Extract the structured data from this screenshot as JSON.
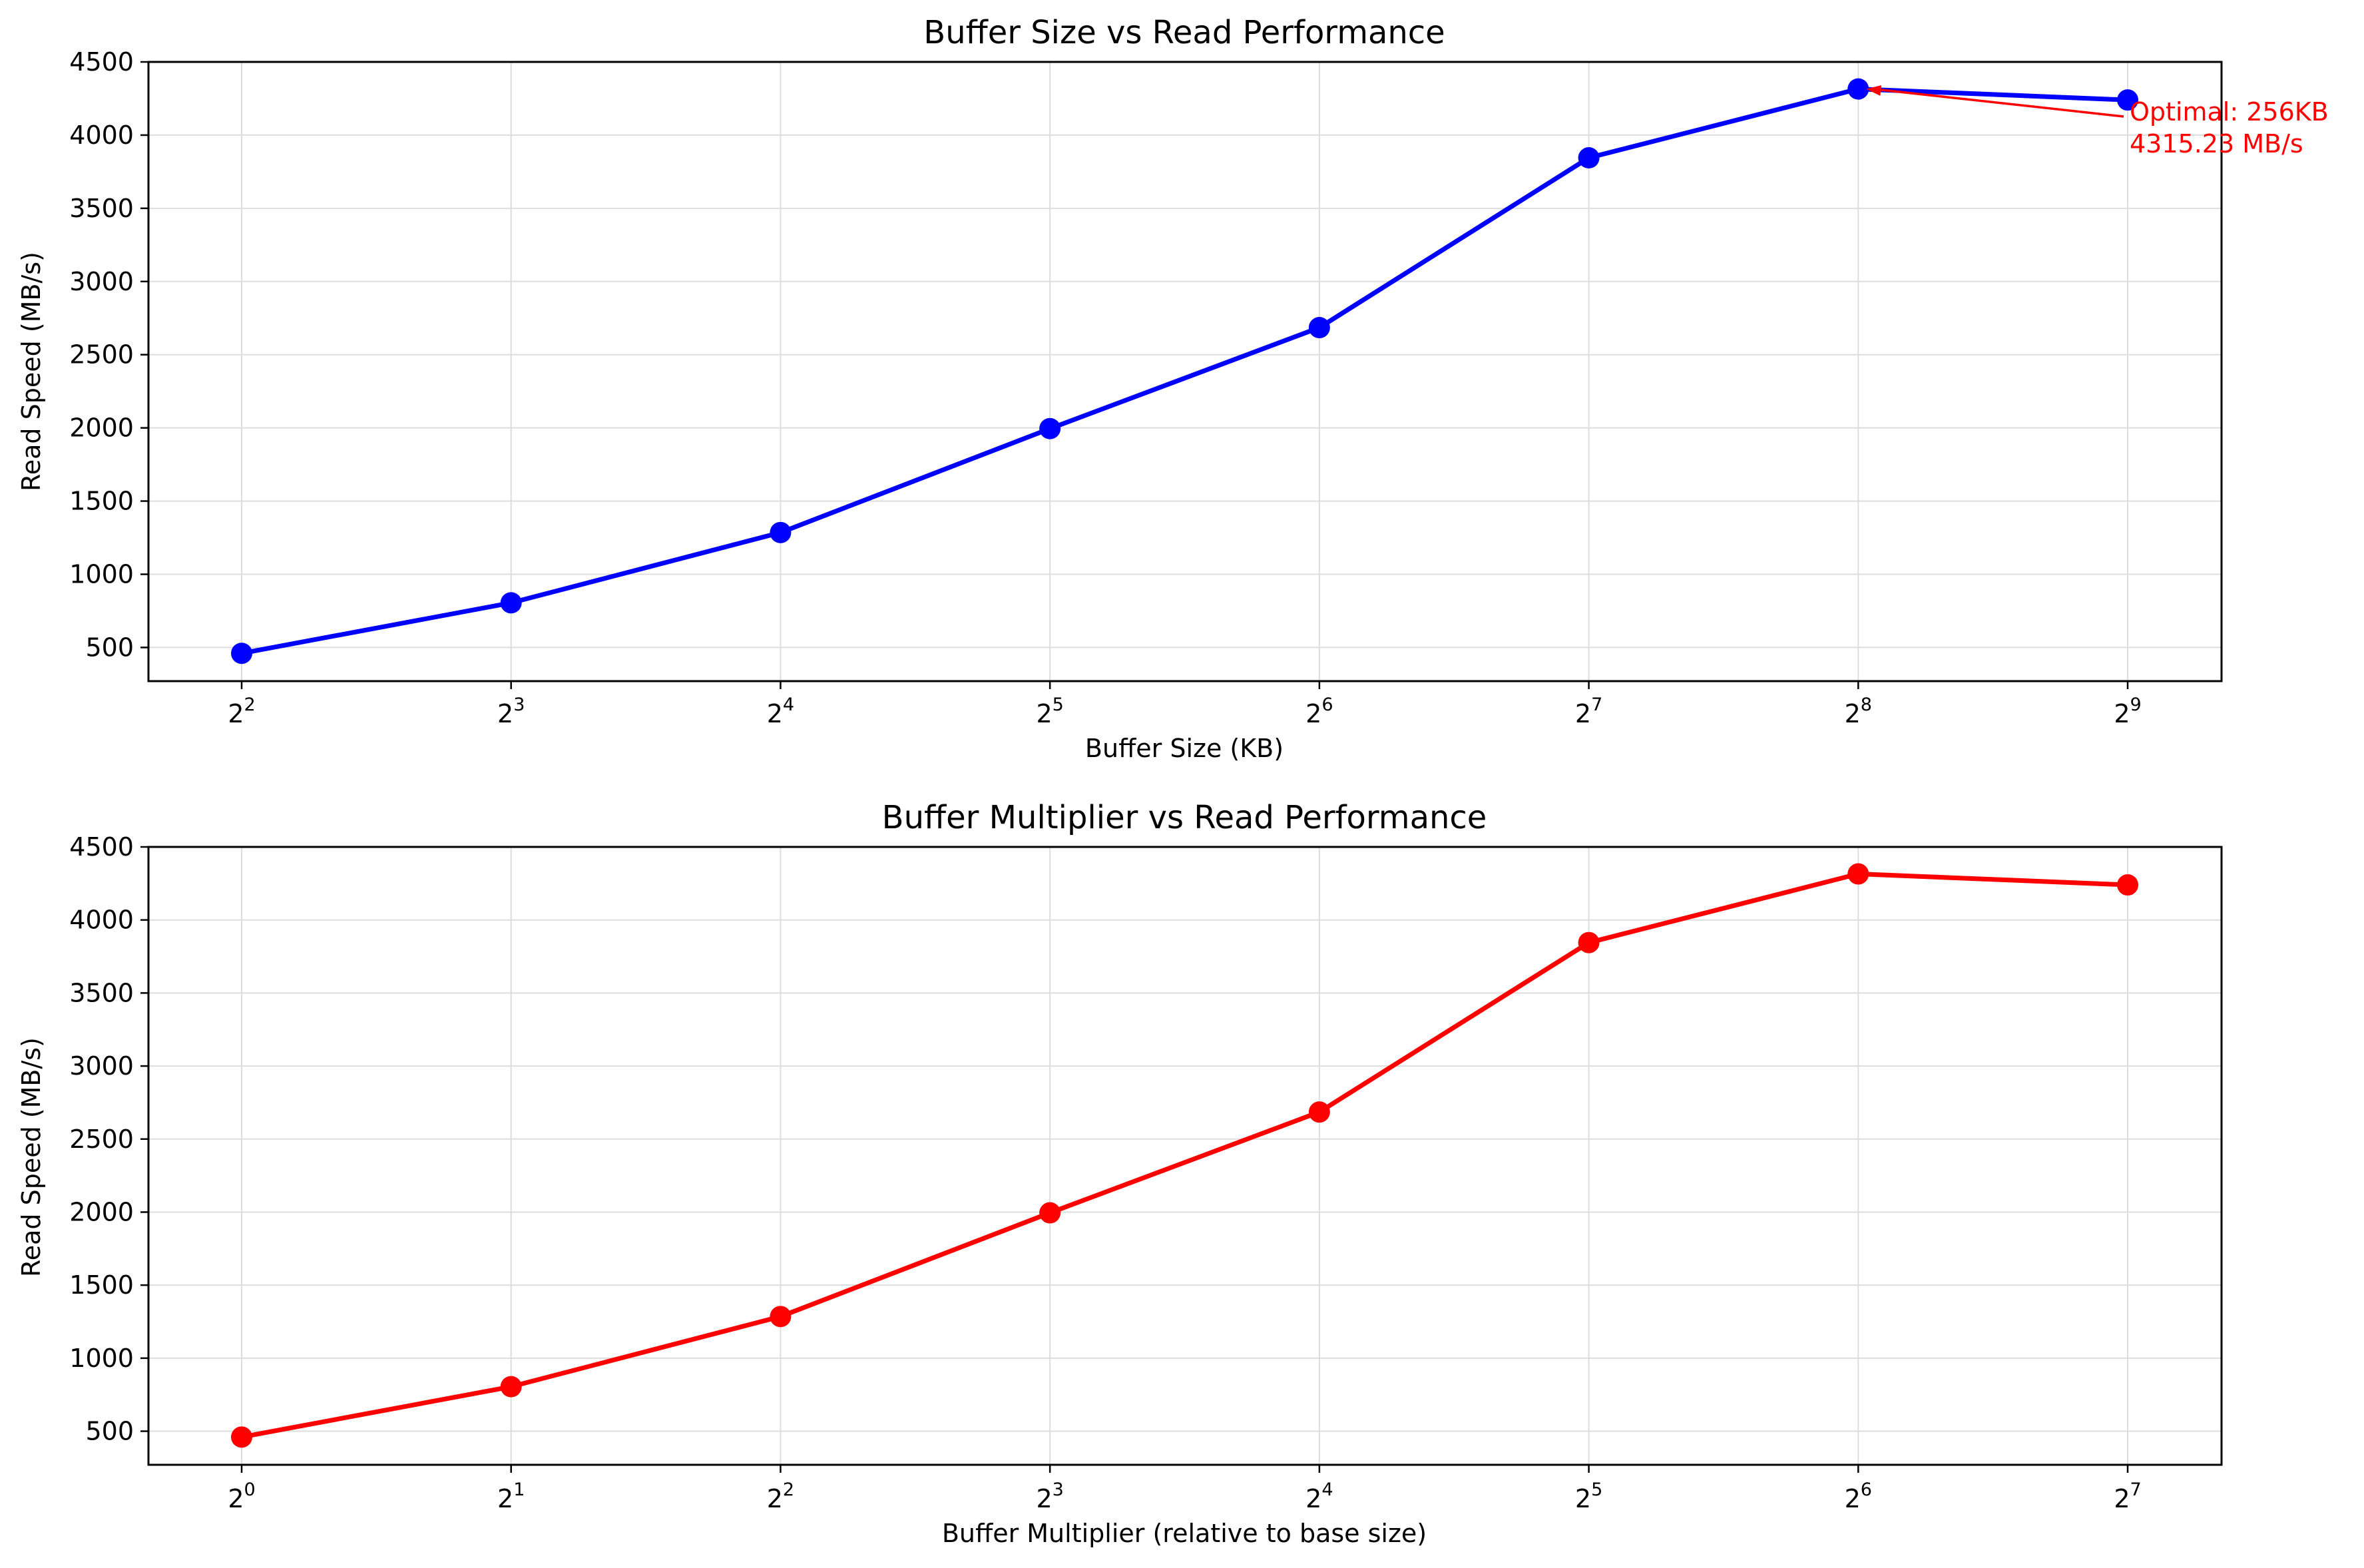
{
  "chart_data": [
    {
      "type": "line",
      "title": "Buffer Size vs Read Performance",
      "xlabel": "Buffer Size (KB)",
      "ylabel": "Read Speed (MB/s)",
      "xscale": "log2",
      "x": [
        4,
        8,
        16,
        32,
        64,
        128,
        256,
        512
      ],
      "x_tick_exponents": [
        "2",
        "3",
        "4",
        "5",
        "6",
        "7",
        "8",
        "9"
      ],
      "y_ticks": [
        "500",
        "1000",
        "1500",
        "2000",
        "2500",
        "3000",
        "3500",
        "4000",
        "4500"
      ],
      "ylim": [
        270,
        4500
      ],
      "grid": true,
      "series": [
        {
          "values": [
            460,
            805,
            1285,
            1995,
            2685,
            3845,
            4315.23,
            4240
          ],
          "color": "#0000ff"
        }
      ],
      "annotation": {
        "line1": "Optimal: 256KB",
        "line2": "4315.23 MB/s",
        "color": "#ff0000",
        "target_x": 256,
        "target_y": 4315.23
      }
    },
    {
      "type": "line",
      "title": "Buffer Multiplier vs Read Performance",
      "xlabel": "Buffer Multiplier (relative to base size)",
      "ylabel": "Read Speed (MB/s)",
      "xscale": "log2",
      "x": [
        1,
        2,
        4,
        8,
        16,
        32,
        64,
        128
      ],
      "x_tick_exponents": [
        "0",
        "1",
        "2",
        "3",
        "4",
        "5",
        "6",
        "7"
      ],
      "y_ticks": [
        "500",
        "1000",
        "1500",
        "2000",
        "2500",
        "3000",
        "3500",
        "4000",
        "4500"
      ],
      "ylim": [
        270,
        4500
      ],
      "grid": true,
      "series": [
        {
          "values": [
            460,
            805,
            1285,
            1995,
            2685,
            3845,
            4315.23,
            4240
          ],
          "color": "#ff0000"
        }
      ]
    }
  ]
}
